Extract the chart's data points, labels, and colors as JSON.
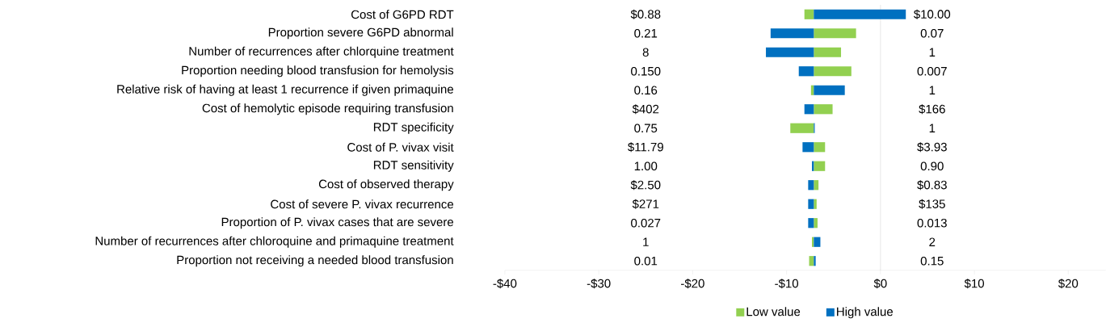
{
  "chart_data": {
    "type": "bar",
    "orientation": "horizontal",
    "categories": [
      "Cost of G6PD RDT",
      "Proportion severe G6PD abnormal",
      "Number of recurrences after chlorquine treatment",
      "Proportion needing blood transfusion for hemolysis",
      "Relative risk of having at least 1 recurrence if given primaquine",
      "Cost of hemolytic episode requiring transfusion",
      "RDT specificity",
      "Cost of P. vivax visit",
      "RDT sensitivity",
      "Cost of observed therapy",
      "Cost of severe P. vivax recurrence",
      "Proportion of P. vivax cases that are severe",
      "Number of recurrences after chloroquine and primaquine treatment",
      "Proportion not receiving a needed blood transfusion"
    ],
    "series": [
      {
        "name": "Low value",
        "color": "#92d050",
        "base": [
          -7.1,
          -7.1,
          -7.1,
          -7.1,
          -7.1,
          -7.1,
          -7.1,
          -7.1,
          -7.1,
          -7.1,
          -7.1,
          -7.1,
          -7.1,
          -7.1
        ],
        "values": [
          -1.0,
          4.5,
          2.9,
          4.0,
          -0.3,
          2.0,
          -2.5,
          1.2,
          1.2,
          0.5,
          0.3,
          0.4,
          -0.2,
          -0.5
        ]
      },
      {
        "name": "High value",
        "color": "#0070c0",
        "base": [
          -7.1,
          -7.1,
          -7.1,
          -7.1,
          -7.1,
          -7.1,
          -7.1,
          -7.1,
          -7.1,
          -7.1,
          -7.1,
          -7.1,
          -7.1,
          -7.1
        ],
        "values": [
          9.8,
          -4.6,
          -5.1,
          -1.6,
          3.3,
          -1.0,
          0.1,
          -1.2,
          -0.2,
          -0.6,
          -0.6,
          -0.6,
          0.7,
          0.2
        ]
      }
    ],
    "annotations": [
      "$0.88",
      "$10.00",
      "0.21",
      "0.07",
      "8",
      "1",
      "0.150",
      "0.007",
      "0.16",
      "1",
      "$402",
      "$166",
      "0.75",
      "1",
      "$11.79",
      "$3.93",
      "1.00",
      "0.90",
      "$2.50",
      "$0.83",
      "$271",
      "$135",
      "0.027",
      "0.013",
      "1",
      "2",
      "0.01",
      "0.15"
    ],
    "xlim": [
      -40,
      24
    ],
    "xticks": [
      {
        "value": -40,
        "label": "-$40"
      },
      {
        "value": -30,
        "label": "-$30"
      },
      {
        "value": -20,
        "label": "-$20"
      },
      {
        "value": -10,
        "label": "-$10"
      },
      {
        "value": 0,
        "label": "$0"
      },
      {
        "value": 10,
        "label": "$10"
      },
      {
        "value": 20,
        "label": "$20"
      }
    ],
    "ref_lines": [
      {
        "axis": "x",
        "value": 0
      }
    ],
    "legend": "bottom"
  }
}
